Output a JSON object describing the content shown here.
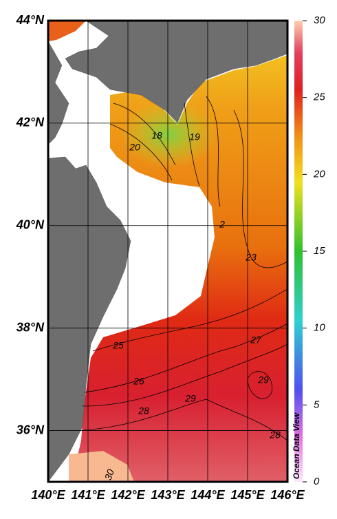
{
  "map": {
    "lat_ticks": [
      {
        "value": 44,
        "label": "44°N"
      },
      {
        "value": 42,
        "label": "42°N"
      },
      {
        "value": 40,
        "label": "40°N"
      },
      {
        "value": 38,
        "label": "38°N"
      },
      {
        "value": 36,
        "label": "36°N"
      }
    ],
    "lon_ticks": [
      {
        "value": 140,
        "label": "140°E"
      },
      {
        "value": 141,
        "label": "141°E"
      },
      {
        "value": 142,
        "label": "142°E"
      },
      {
        "value": 143,
        "label": "143°E"
      },
      {
        "value": 144,
        "label": "144°E"
      },
      {
        "value": 145,
        "label": "145°E"
      },
      {
        "value": 146,
        "label": "146°E"
      }
    ],
    "lat_range": [
      35,
      44
    ],
    "lon_range": [
      140,
      146
    ],
    "contour_labels": [
      18,
      19,
      20,
      2,
      23,
      25,
      26,
      27,
      28,
      29,
      29,
      28,
      30
    ],
    "colorbar": {
      "range": [
        0,
        30
      ],
      "ticks": [
        0,
        5,
        10,
        15,
        20,
        25,
        30
      ]
    },
    "watermark": "Ocean Data View"
  }
}
